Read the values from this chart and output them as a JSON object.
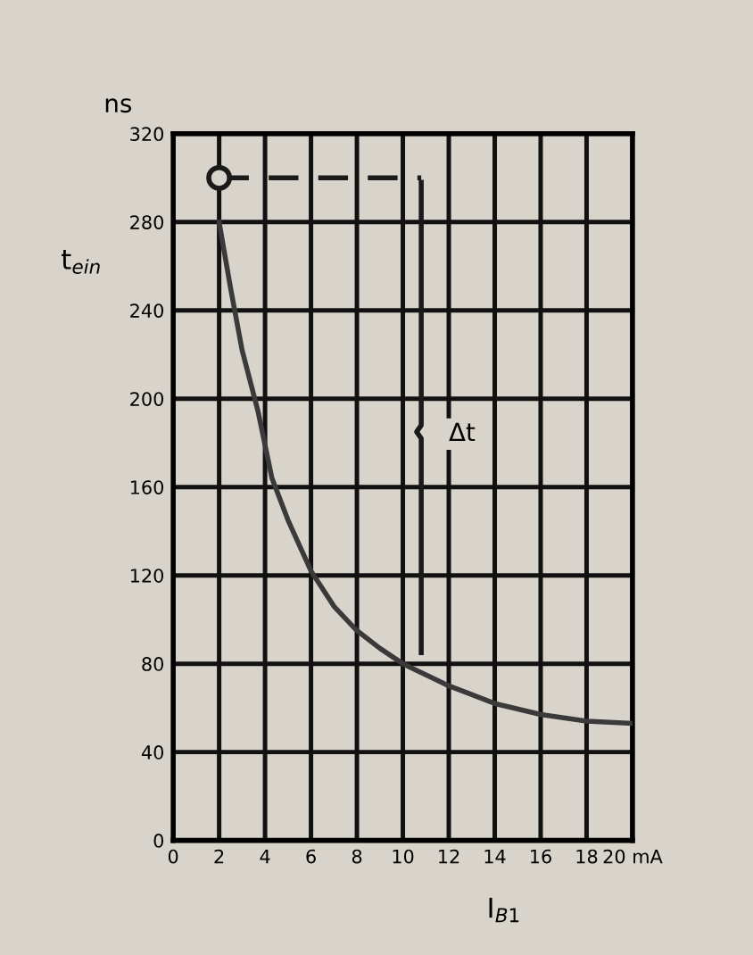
{
  "chart_data": {
    "type": "line",
    "xlabel": "I$_{B1}$",
    "ylabel": "t$_{ein}$",
    "annotations": [
      "ns",
      "Δt"
    ],
    "series": [
      {
        "type": "line",
        "color": "#3a3a3a",
        "line_style": "solid",
        "marker": "none",
        "x": [
          2,
          2.5,
          3,
          3.7,
          4.3,
          5,
          6,
          7,
          8,
          9,
          10,
          12,
          14,
          16,
          18,
          20
        ],
        "values": [
          280,
          250,
          222,
          194,
          164,
          145,
          122,
          106,
          95,
          87,
          80,
          70,
          62,
          57,
          54,
          53
        ]
      },
      {
        "type": "line",
        "color": "#1a1a1a",
        "line_style": "dashed",
        "marker": "none",
        "x": [
          2,
          10.8
        ],
        "values": [
          300,
          300
        ]
      },
      {
        "type": "line",
        "color": "#1a1a1a",
        "line_style": "solid",
        "marker": "none",
        "x": [
          10.8,
          10.8,
          10.6,
          10.8,
          10.8
        ],
        "values": [
          298,
          188,
          185,
          182,
          85
        ]
      },
      {
        "type": "scatter",
        "color": "#1a1a1a",
        "marker": "circle",
        "x": [
          2
        ],
        "values": [
          300
        ]
      }
    ],
    "xlim": [
      0,
      20
    ],
    "ylim": [
      0,
      320
    ],
    "xticks": [
      0,
      2,
      4,
      6,
      8,
      10,
      12,
      14,
      16,
      18,
      {
        "value": 20,
        "label": "20 mA"
      }
    ],
    "yticks": [
      0,
      40,
      80,
      120,
      160,
      200,
      240,
      280,
      320
    ],
    "grid": true,
    "legend": false
  }
}
